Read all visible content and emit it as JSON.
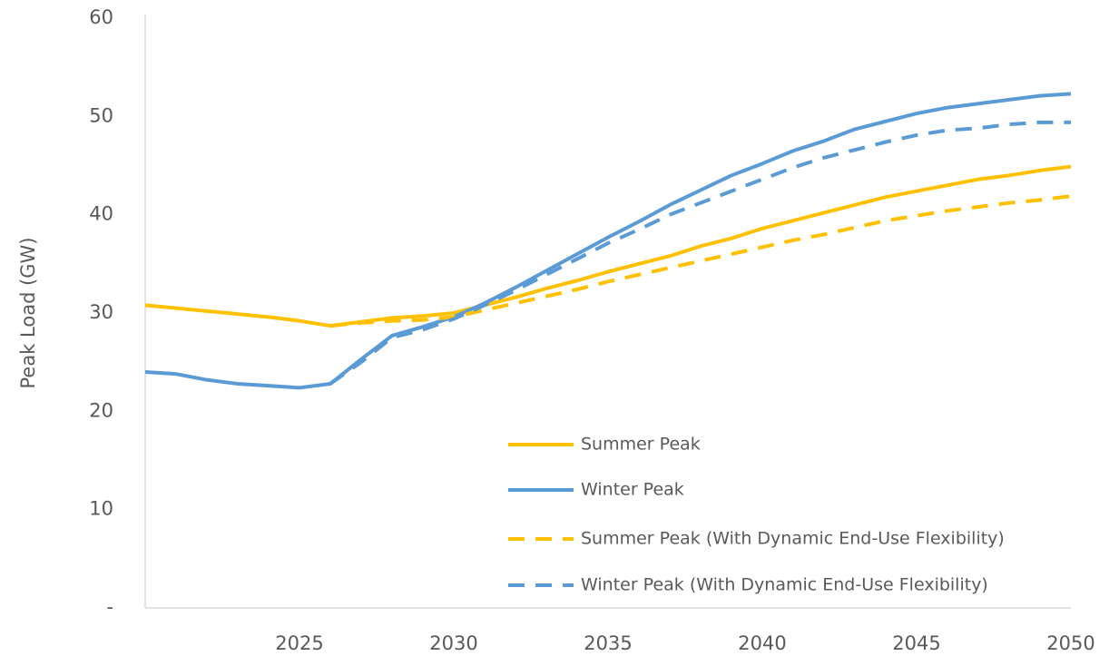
{
  "chart_data": {
    "type": "line",
    "y_label": "Peak Load (GW)",
    "x": [
      2020,
      2021,
      2022,
      2023,
      2024,
      2025,
      2026,
      2027,
      2028,
      2029,
      2030,
      2031,
      2032,
      2033,
      2034,
      2035,
      2036,
      2037,
      2038,
      2039,
      2040,
      2041,
      2042,
      2043,
      2044,
      2045,
      2046,
      2047,
      2048,
      2049,
      2050
    ],
    "xlim": [
      2020,
      2050
    ],
    "xticks": [
      2025,
      2030,
      2035,
      2040,
      2045,
      2050
    ],
    "ylim": [
      0,
      60
    ],
    "yticks": [
      {
        "value": 0,
        "label": "-"
      },
      10,
      20,
      30,
      40,
      50,
      60
    ],
    "grid": false,
    "series": [
      {
        "name": "Summer Peak",
        "color": "#ffc000",
        "dashed": false,
        "values": [
          30.8,
          30.5,
          30.2,
          29.9,
          29.6,
          29.2,
          28.7,
          29.1,
          29.5,
          29.7,
          30.0,
          30.8,
          31.6,
          32.5,
          33.3,
          34.2,
          35.0,
          35.8,
          36.8,
          37.6,
          38.6,
          39.4,
          40.2,
          41.0,
          41.8,
          42.4,
          43.0,
          43.6,
          44.0,
          44.5,
          44.9
        ]
      },
      {
        "name": "Winter Peak",
        "color": "#5b9bd5",
        "dashed": false,
        "values": [
          24.0,
          23.8,
          23.2,
          22.8,
          22.6,
          22.4,
          22.8,
          25.3,
          27.7,
          28.6,
          29.6,
          31.0,
          32.6,
          34.3,
          36.0,
          37.7,
          39.3,
          41.0,
          42.5,
          44.0,
          45.2,
          46.5,
          47.5,
          48.7,
          49.5,
          50.3,
          50.9,
          51.3,
          51.7,
          52.1,
          52.3
        ]
      },
      {
        "name": "Summer Peak (With Dynamic End-Use Flexibility)",
        "color": "#ffc000",
        "dashed": true,
        "values": [
          null,
          null,
          null,
          null,
          null,
          null,
          28.7,
          29.0,
          29.2,
          29.3,
          29.6,
          30.3,
          31.0,
          31.7,
          32.4,
          33.2,
          33.9,
          34.6,
          35.3,
          36.0,
          36.7,
          37.4,
          38.0,
          38.7,
          39.4,
          39.9,
          40.4,
          40.8,
          41.2,
          41.5,
          41.9
        ]
      },
      {
        "name": "Winter Peak (With Dynamic End-Use Flexibility)",
        "color": "#5b9bd5",
        "dashed": true,
        "values": [
          null,
          null,
          null,
          null,
          null,
          null,
          22.8,
          25.0,
          27.5,
          28.3,
          29.4,
          30.8,
          32.3,
          33.9,
          35.5,
          37.1,
          38.5,
          40.0,
          41.2,
          42.4,
          43.6,
          44.8,
          45.8,
          46.6,
          47.4,
          48.1,
          48.6,
          48.8,
          49.2,
          49.4,
          49.4
        ]
      }
    ]
  }
}
